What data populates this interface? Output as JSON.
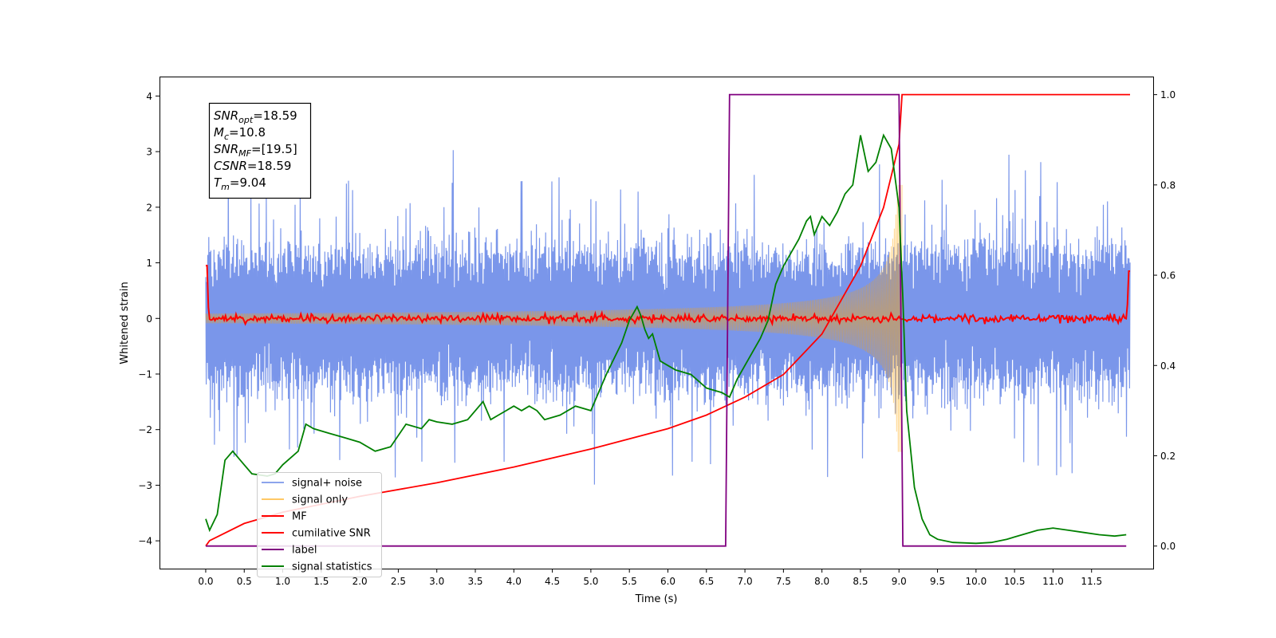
{
  "chart_data": {
    "type": "line",
    "xlabel": "Time (s)",
    "ylabel": "Whitened strain",
    "xlim": [
      -0.6,
      12.3
    ],
    "ylim": [
      -4.5,
      4.35
    ],
    "y2lim": [
      -0.05,
      1.04
    ],
    "xticks": [
      "0.0",
      "0.5",
      "1.0",
      "1.5",
      "2.0",
      "2.5",
      "3.0",
      "3.5",
      "4.0",
      "4.5",
      "5.0",
      "5.5",
      "6.0",
      "6.5",
      "7.0",
      "7.5",
      "8.0",
      "8.5",
      "9.0",
      "9.5",
      "10.0",
      "10.5",
      "11.0",
      "11.5"
    ],
    "yticks": [
      "-4",
      "-3",
      "-2",
      "-1",
      "0",
      "1",
      "2",
      "3",
      "4"
    ],
    "y2ticks": [
      "0.0",
      "0.2",
      "0.4",
      "0.6",
      "0.8",
      "1.0"
    ],
    "grid": false,
    "legend_position": "lower-left",
    "annotation": {
      "lines": [
        {
          "sym": "SNR",
          "sub": "opt",
          "rest": "=18.59"
        },
        {
          "sym": "M",
          "sub": "c",
          "rest": "=10.8"
        },
        {
          "sym": "SNR",
          "sub": "MF",
          "rest": "=[19.5]"
        },
        {
          "sym": "CSNR",
          "sub": "",
          "rest": "=18.59"
        },
        {
          "sym": "T",
          "sub": "m",
          "rest": "=9.04"
        }
      ]
    },
    "series": [
      {
        "name": "signal+ noise",
        "color": "#4169e1",
        "axis": "left",
        "kind": "noise",
        "x_range": [
          0,
          12
        ],
        "spread": 2.1
      },
      {
        "name": "signal only",
        "color": "#ffa500",
        "axis": "left",
        "kind": "chirp",
        "x_range": [
          0,
          9.04
        ],
        "peak_amplitude": 2.4
      },
      {
        "name": "MF",
        "color": "#ff0000",
        "axis": "left",
        "kind": "filter-output",
        "x_range": [
          0,
          12
        ]
      },
      {
        "name": "cumilative SNR",
        "color": "#ff0000",
        "axis": "right",
        "x": [
          0,
          0.05,
          0.5,
          1.0,
          2.0,
          3.0,
          4.0,
          5.0,
          6.0,
          6.5,
          7.0,
          7.5,
          8.0,
          8.5,
          8.8,
          9.0,
          9.04,
          9.05,
          12.0
        ],
        "values": [
          0.0,
          0.012,
          0.05,
          0.075,
          0.11,
          0.14,
          0.175,
          0.215,
          0.26,
          0.29,
          0.33,
          0.38,
          0.47,
          0.62,
          0.75,
          0.89,
          1.0,
          1.0,
          1.0
        ]
      },
      {
        "name": "label",
        "color": "#800080",
        "axis": "right",
        "x": [
          0,
          6.75,
          6.8,
          9.0,
          9.05,
          11.95
        ],
        "values": [
          0,
          0,
          1,
          1,
          0,
          0
        ]
      },
      {
        "name": "signal statistics",
        "color": "#008000",
        "axis": "right",
        "x": [
          0,
          0.05,
          0.15,
          0.25,
          0.35,
          0.5,
          0.6,
          0.8,
          0.9,
          1.0,
          1.2,
          1.3,
          1.4,
          1.6,
          1.8,
          2.0,
          2.2,
          2.4,
          2.6,
          2.8,
          2.9,
          3.0,
          3.2,
          3.4,
          3.6,
          3.7,
          3.8,
          3.9,
          4.0,
          4.1,
          4.2,
          4.3,
          4.4,
          4.6,
          4.8,
          5.0,
          5.2,
          5.4,
          5.5,
          5.6,
          5.65,
          5.7,
          5.75,
          5.8,
          5.85,
          5.9,
          6.0,
          6.1,
          6.3,
          6.5,
          6.7,
          6.8,
          6.9,
          7.1,
          7.2,
          7.3,
          7.4,
          7.5,
          7.6,
          7.7,
          7.8,
          7.85,
          7.9,
          8.0,
          8.1,
          8.2,
          8.3,
          8.4,
          8.5,
          8.6,
          8.7,
          8.8,
          8.9,
          9.0,
          9.05,
          9.1,
          9.2,
          9.3,
          9.4,
          9.5,
          9.7,
          10.0,
          10.2,
          10.4,
          10.6,
          10.8,
          11.0,
          11.2,
          11.4,
          11.6,
          11.8,
          11.95
        ],
        "values": [
          0.06,
          0.035,
          0.07,
          0.19,
          0.21,
          0.18,
          0.16,
          0.155,
          0.16,
          0.18,
          0.21,
          0.27,
          0.26,
          0.25,
          0.24,
          0.23,
          0.21,
          0.22,
          0.27,
          0.26,
          0.28,
          0.275,
          0.27,
          0.28,
          0.32,
          0.28,
          0.29,
          0.3,
          0.31,
          0.3,
          0.31,
          0.3,
          0.28,
          0.29,
          0.31,
          0.3,
          0.38,
          0.45,
          0.5,
          0.53,
          0.51,
          0.48,
          0.46,
          0.47,
          0.44,
          0.41,
          0.4,
          0.39,
          0.38,
          0.35,
          0.34,
          0.33,
          0.37,
          0.43,
          0.46,
          0.5,
          0.58,
          0.62,
          0.65,
          0.68,
          0.72,
          0.73,
          0.69,
          0.73,
          0.71,
          0.74,
          0.78,
          0.8,
          0.91,
          0.83,
          0.85,
          0.91,
          0.88,
          0.75,
          0.55,
          0.3,
          0.13,
          0.06,
          0.025,
          0.015,
          0.008,
          0.006,
          0.008,
          0.015,
          0.025,
          0.035,
          0.04,
          0.035,
          0.03,
          0.025,
          0.022,
          0.025
        ]
      }
    ]
  }
}
